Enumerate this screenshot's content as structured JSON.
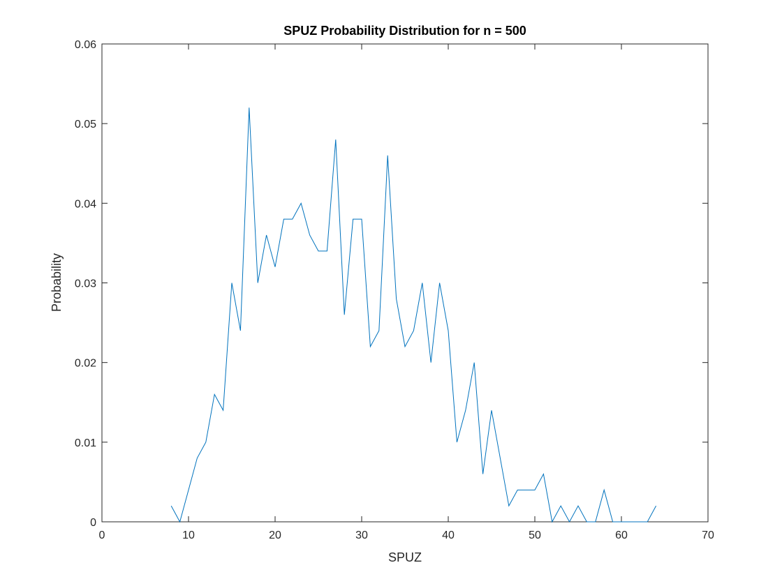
{
  "chart_data": {
    "type": "line",
    "title": "SPUZ Probability Distribution for n = 500",
    "xlabel": "SPUZ",
    "ylabel": "Probability",
    "xlim": [
      0,
      70
    ],
    "ylim": [
      0,
      0.06
    ],
    "xticks": [
      "0",
      "10",
      "20",
      "30",
      "40",
      "50",
      "60",
      "70"
    ],
    "yticks": [
      "0",
      "0.01",
      "0.02",
      "0.03",
      "0.04",
      "0.05",
      "0.06"
    ],
    "grid": false,
    "line_color": "#0072BD",
    "series": [
      {
        "x": [
          8,
          9,
          10,
          11,
          12,
          13,
          14,
          15,
          16,
          17,
          18,
          19,
          20,
          21,
          22,
          23,
          24,
          25,
          26,
          27,
          28,
          29,
          30,
          31,
          32,
          33,
          34,
          35,
          36,
          37,
          38,
          39,
          40,
          41,
          42,
          43,
          44,
          45,
          46,
          47,
          48,
          49,
          50,
          51,
          52,
          53,
          54,
          55,
          56,
          57,
          58,
          59,
          60,
          61,
          62,
          63,
          64
        ],
        "y": [
          0.002,
          0,
          0.004,
          0.008,
          0.01,
          0.016,
          0.014,
          0.03,
          0.024,
          0.052,
          0.03,
          0.036,
          0.032,
          0.038,
          0.038,
          0.04,
          0.036,
          0.034,
          0.034,
          0.048,
          0.026,
          0.038,
          0.038,
          0.022,
          0.024,
          0.046,
          0.028,
          0.022,
          0.024,
          0.03,
          0.02,
          0.03,
          0.024,
          0.01,
          0.014,
          0.02,
          0.006,
          0.014,
          0.008,
          0.002,
          0.004,
          0.004,
          0.004,
          0.006,
          0,
          0.002,
          0,
          0.002,
          0,
          0,
          0.004,
          0,
          0,
          0,
          0,
          0,
          0.002
        ]
      }
    ]
  }
}
